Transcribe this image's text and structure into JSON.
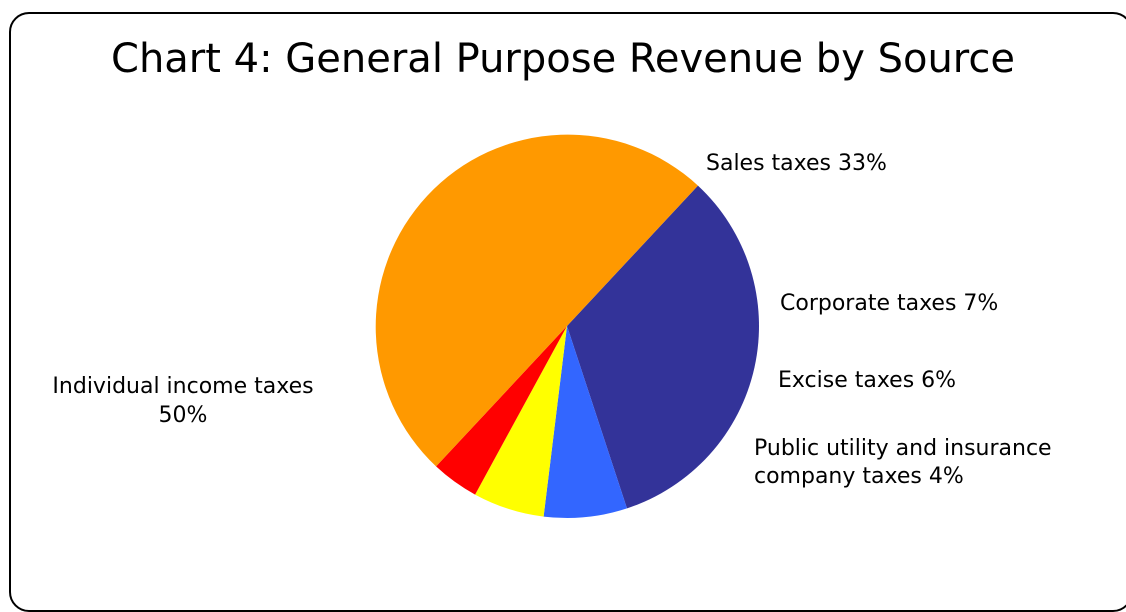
{
  "chart_data": {
    "type": "pie",
    "title": "Chart 4: General Purpose Revenue by Source",
    "slices": [
      {
        "name": "Sales taxes",
        "value": 33,
        "label_lines": [
          "Sales taxes 33%"
        ],
        "color": "#333399"
      },
      {
        "name": "Corporate taxes",
        "value": 7,
        "label_lines": [
          "Corporate taxes 7%"
        ],
        "color": "#3366FF"
      },
      {
        "name": "Excise taxes",
        "value": 6,
        "label_lines": [
          "Excise taxes 6%"
        ],
        "color": "#FFFF00"
      },
      {
        "name": "Public utility and insurance company taxes",
        "value": 4,
        "label_lines": [
          "Public utility and insurance",
          "company taxes 4%"
        ],
        "color": "#FF0000"
      },
      {
        "name": "Individual income taxes",
        "value": 50,
        "label_lines": [
          "Individual income taxes",
          "50%"
        ],
        "color": "#FF9900"
      }
    ]
  }
}
